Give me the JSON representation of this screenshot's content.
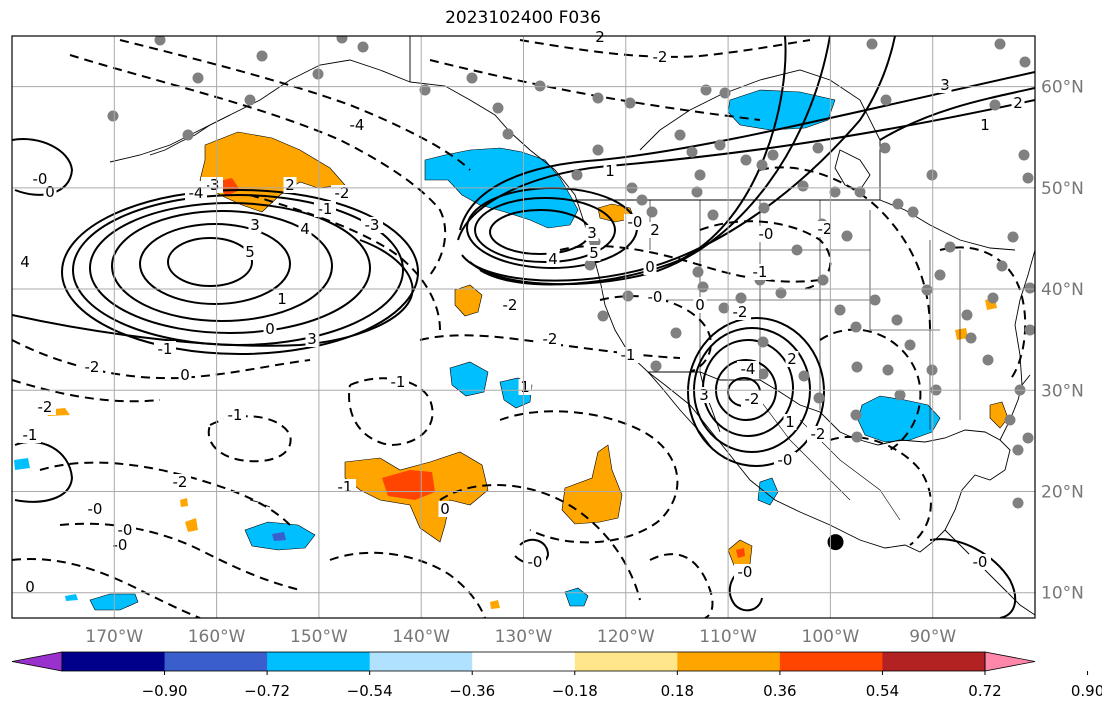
{
  "title": "2023102400 F036",
  "map": {
    "projection": "equirectangular",
    "lon_range": [
      -180,
      -80
    ],
    "lat_range": [
      7.5,
      65
    ],
    "lon_labels": [
      "170°W",
      "160°W",
      "150°W",
      "140°W",
      "130°W",
      "120°W",
      "110°W",
      "100°W",
      "90°W"
    ],
    "lat_labels": [
      "60°N",
      "50°N",
      "40°N",
      "30°N",
      "20°N",
      "10°N"
    ],
    "gridlines": true,
    "contour_labels": [
      "-0",
      "-2",
      "-3",
      "-4",
      "-1",
      "2",
      "3",
      "4",
      "5",
      "1",
      "0",
      "3",
      "-1",
      "-2",
      "-3",
      "-4",
      "-2",
      "-2",
      "-1",
      "-0",
      "-0",
      "-1",
      "-0",
      "0",
      "-1",
      "4",
      "3",
      "2",
      "1",
      "0",
      "-2",
      "-2",
      "-4",
      "-2",
      "2",
      "3",
      "5",
      "4",
      "0",
      "-0",
      "2",
      "-2",
      "-0",
      "1",
      "-1",
      "1",
      "-2",
      "0",
      "-0",
      "-1",
      "-2",
      "-2",
      "-0",
      "-0",
      "0",
      "0",
      "-0",
      "-1",
      "3",
      "2",
      "1",
      "-0"
    ],
    "marker": {
      "name": "tropical-cyclone-position",
      "lon": -99.5,
      "lat": 15.0,
      "color": "#000000"
    }
  },
  "colorbar": {
    "ticks": [
      "−0.90",
      "−0.72",
      "−0.54",
      "−0.36",
      "−0.18",
      "0.18",
      "0.36",
      "0.54",
      "0.72",
      "0.90"
    ],
    "colors": [
      "#9932cc",
      "#00008b",
      "#3a5fcd",
      "#00bfff",
      "#b0e2ff",
      "#ffffff",
      "#ffe68a",
      "#ffa500",
      "#ff4500",
      "#b22222",
      "#ff88aa"
    ],
    "extend": "both"
  }
}
